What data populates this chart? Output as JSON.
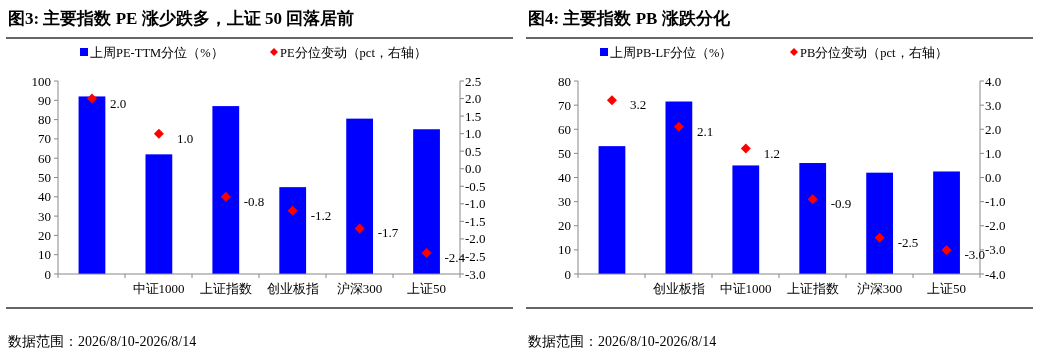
{
  "chart_data": [
    {
      "type": "bar",
      "title": "图3:  主要指数 PE 涨少跌多，上证 50 回落居前",
      "categories": [
        null,
        "中证1000",
        "上证指数",
        "创业板指",
        "沪深300",
        "上证50"
      ],
      "series": [
        {
          "name": "上周PE-TTM分位（%）",
          "type": "bar",
          "color": "#0000ff",
          "values": [
            92,
            62,
            87,
            45,
            80.5,
            75
          ]
        },
        {
          "name": "PE分位变动（pct，右轴）",
          "type": "scatter",
          "axis": "y2",
          "marker": "diamond",
          "color": "#ff0000",
          "values": [
            2.0,
            1.0,
            -0.8,
            -1.2,
            -1.7,
            -2.4
          ],
          "value_labels": [
            "2.0",
            "1.0",
            "-0.8",
            "-1.2",
            "-1.7",
            "-2.4"
          ]
        }
      ],
      "ylim": [
        0,
        100
      ],
      "yticks": [
        0,
        10,
        20,
        30,
        40,
        50,
        60,
        70,
        80,
        90,
        100
      ],
      "y2lim": [
        -3,
        2.5
      ],
      "y2ticks": [
        {
          "value": -3,
          "label": "-3.0"
        },
        {
          "value": -2.5,
          "label": "-2.5"
        },
        {
          "value": -2,
          "label": "-2.0"
        },
        {
          "value": -1.5,
          "label": "-1.5"
        },
        {
          "value": -1,
          "label": "-1.0"
        },
        {
          "value": -0.5,
          "label": "-0.5"
        },
        {
          "value": 0,
          "label": "0.0"
        },
        {
          "value": 0.5,
          "label": "0.5"
        },
        {
          "value": 1,
          "label": "1.0"
        },
        {
          "value": 1.5,
          "label": "1.5"
        },
        {
          "value": 2,
          "label": "2.0"
        },
        {
          "value": 2.5,
          "label": "2.5"
        }
      ],
      "grid": false,
      "legend": "top",
      "annotations": [
        "数据范围：2026/8/10-2026/8/14"
      ]
    },
    {
      "type": "bar",
      "title": "图4:  主要指数 PB 涨跌分化",
      "categories": [
        null,
        "创业板指",
        "中证1000",
        "上证指数",
        "沪深300",
        "上证50"
      ],
      "series": [
        {
          "name": "上周PB-LF分位（%）",
          "type": "bar",
          "color": "#0000ff",
          "values": [
            53,
            71.5,
            45,
            46,
            42,
            42.5
          ]
        },
        {
          "name": "PB分位变动（pct，右轴）",
          "type": "scatter",
          "axis": "y2",
          "marker": "diamond",
          "color": "#ff0000",
          "values": [
            3.2,
            2.1,
            1.2,
            -0.9,
            -2.5,
            -3.0
          ],
          "value_labels": [
            "3.2",
            "2.1",
            "1.2",
            "-0.9",
            "-2.5",
            "-3.0"
          ]
        }
      ],
      "ylim": [
        0,
        80
      ],
      "yticks": [
        0,
        10,
        20,
        30,
        40,
        50,
        60,
        70,
        80
      ],
      "y2lim": [
        -4,
        4
      ],
      "y2ticks": [
        {
          "value": -4,
          "label": "-4.0"
        },
        {
          "value": -3,
          "label": "-3.0"
        },
        {
          "value": -2,
          "label": "-2.0"
        },
        {
          "value": -1,
          "label": "-1.0"
        },
        {
          "value": 0,
          "label": "0.0"
        },
        {
          "value": 1,
          "label": "1.0"
        },
        {
          "value": 2,
          "label": "2.0"
        },
        {
          "value": 3,
          "label": "3.0"
        },
        {
          "value": 4,
          "label": "4.0"
        }
      ],
      "grid": false,
      "legend": "top",
      "annotations": [
        "数据范围：2026/8/10-2026/8/14"
      ]
    }
  ]
}
